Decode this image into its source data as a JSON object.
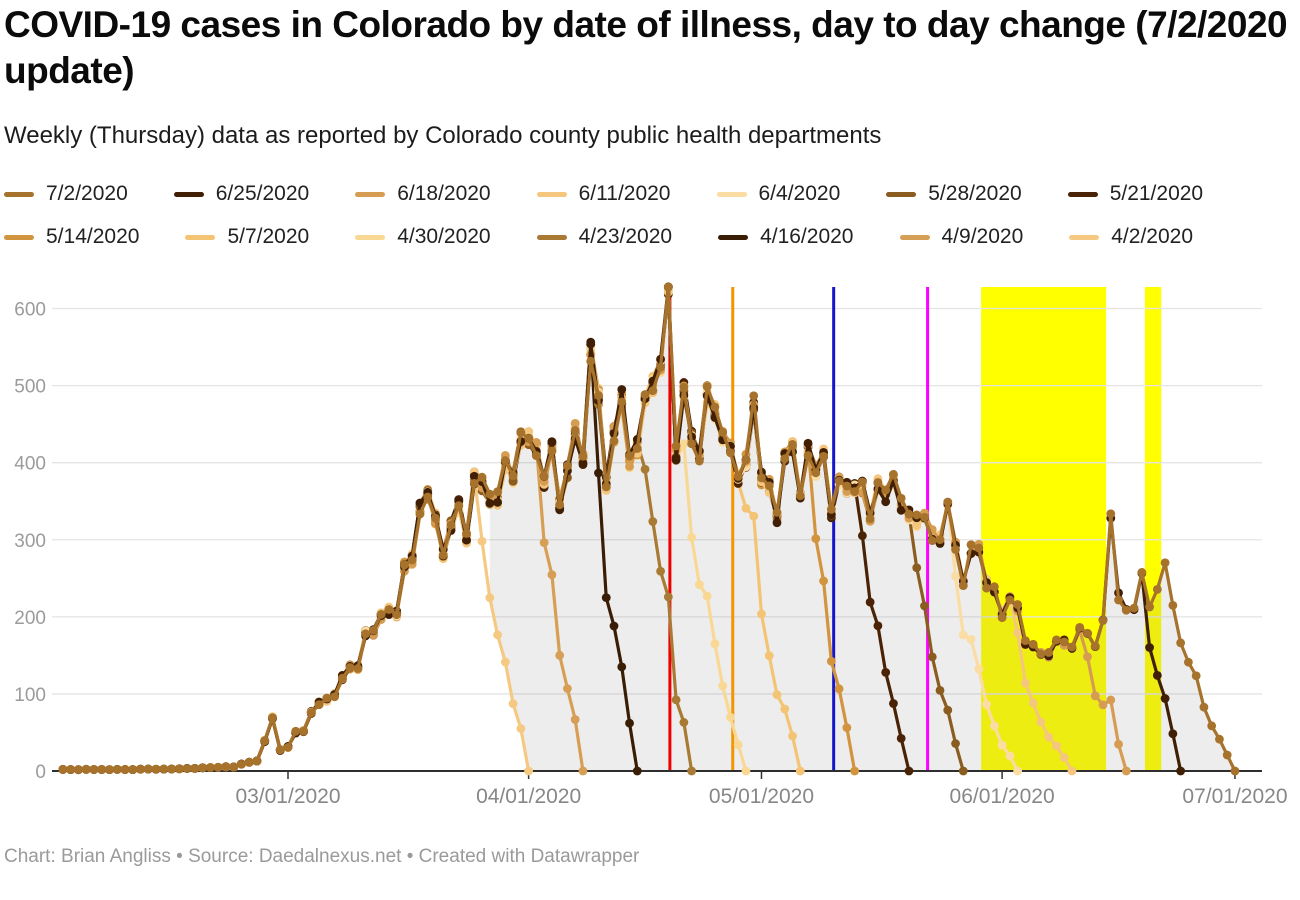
{
  "header": {
    "title": "COVID-19 cases in Colorado by date of illness, day to day change (7/2/2020 update)",
    "subtitle": "Weekly (Thursday) data as reported by Colorado county public health departments"
  },
  "footer": {
    "credit": "Chart: Brian Angliss • Source: Daedalnexus.net • Created with Datawrapper"
  },
  "chart_data": {
    "type": "line",
    "title": "COVID-19 cases in Colorado by date of illness, day to day change (7/2/2020 update)",
    "xlabel": "",
    "ylabel": "",
    "grid": true,
    "legend_position": "top",
    "x_axis": {
      "start_date": "2/1/2020",
      "tick_labels": [
        "03/01/2020",
        "04/01/2020",
        "05/01/2020",
        "06/01/2020",
        "07/01/2020"
      ],
      "tick_days": [
        29,
        60,
        90,
        121,
        151
      ]
    },
    "y_axis": {
      "ticks": [
        0,
        100,
        200,
        300,
        400,
        500,
        600
      ],
      "ylim": [
        0,
        628
      ]
    },
    "envelope_points_day_value": [
      [
        0,
        2
      ],
      [
        8,
        2
      ],
      [
        16,
        3
      ],
      [
        22,
        6
      ],
      [
        25,
        14
      ],
      [
        27,
        68
      ],
      [
        28,
        30
      ],
      [
        30,
        48
      ],
      [
        33,
        82
      ],
      [
        36,
        122
      ],
      [
        39,
        162
      ],
      [
        42,
        222
      ],
      [
        45,
        292
      ],
      [
        48,
        332
      ],
      [
        51,
        306
      ],
      [
        54,
        352
      ],
      [
        57,
        402
      ],
      [
        59,
        416
      ],
      [
        61,
        392
      ],
      [
        63,
        436
      ],
      [
        65,
        422
      ],
      [
        67,
        462
      ],
      [
        68,
        506
      ],
      [
        70,
        432
      ],
      [
        72,
        466
      ],
      [
        74,
        416
      ],
      [
        76,
        472
      ],
      [
        78,
        628
      ],
      [
        79,
        422
      ],
      [
        80,
        452
      ],
      [
        82,
        422
      ],
      [
        84,
        446
      ],
      [
        86,
        422
      ],
      [
        88,
        436
      ],
      [
        90,
        422
      ],
      [
        92,
        416
      ],
      [
        94,
        422
      ],
      [
        96,
        392
      ],
      [
        98,
        406
      ],
      [
        100,
        372
      ],
      [
        102,
        392
      ],
      [
        104,
        356
      ],
      [
        106,
        372
      ],
      [
        108,
        316
      ],
      [
        110,
        332
      ],
      [
        112,
        292
      ],
      [
        114,
        306
      ],
      [
        116,
        266
      ],
      [
        118,
        282
      ],
      [
        120,
        236
      ],
      [
        122,
        200
      ],
      [
        124,
        182
      ],
      [
        126,
        168
      ],
      [
        128,
        162
      ],
      [
        130,
        172
      ],
      [
        132,
        166
      ],
      [
        134,
        192
      ],
      [
        135,
        322
      ],
      [
        136,
        252
      ],
      [
        137,
        224
      ],
      [
        138,
        236
      ],
      [
        140,
        228
      ],
      [
        142,
        242
      ],
      [
        144,
        224
      ],
      [
        146,
        238
      ],
      [
        148,
        232
      ],
      [
        150,
        228
      ],
      [
        152,
        232
      ]
    ],
    "series": [
      {
        "label": "7/2/2020",
        "color": "#a6722c",
        "report_day": 152,
        "lag_days": 10
      },
      {
        "label": "6/25/2020",
        "color": "#401f05",
        "report_day": 145,
        "lag_days": 6
      },
      {
        "label": "6/18/2020",
        "color": "#d69c52",
        "report_day": 138,
        "lag_days": 7
      },
      {
        "label": "6/11/2020",
        "color": "#f5c67e",
        "report_day": 131,
        "lag_days": 9
      },
      {
        "label": "6/4/2020",
        "color": "#fbdca2",
        "report_day": 124,
        "lag_days": 10
      },
      {
        "label": "5/28/2020",
        "color": "#8a5c20",
        "report_day": 117,
        "lag_days": 8
      },
      {
        "label": "5/21/2020",
        "color": "#4a2306",
        "report_day": 110,
        "lag_days": 8
      },
      {
        "label": "5/14/2020",
        "color": "#d2943e",
        "report_day": 103,
        "lag_days": 7
      },
      {
        "label": "5/7/2020",
        "color": "#f3c474",
        "report_day": 96,
        "lag_days": 9
      },
      {
        "label": "4/30/2020",
        "color": "#f9d894",
        "report_day": 89,
        "lag_days": 10
      },
      {
        "label": "4/23/2020",
        "color": "#a87a33",
        "report_day": 82,
        "lag_days": 8
      },
      {
        "label": "4/16/2020",
        "color": "#3a1d05",
        "report_day": 75,
        "lag_days": 7
      },
      {
        "label": "4/9/2020",
        "color": "#d79e55",
        "report_day": 68,
        "lag_days": 7
      },
      {
        "label": "4/2/2020",
        "color": "#f6c983",
        "report_day": 61,
        "lag_days": 8
      }
    ],
    "annotations": {
      "vlines": [
        {
          "date": "4/19/2020",
          "day": 78.2,
          "color": "#ee0000"
        },
        {
          "date": "4/27/2020",
          "day": 86.3,
          "color": "#f29500"
        },
        {
          "date": "5/10/2020",
          "day": 99.3,
          "color": "#1515cc"
        },
        {
          "date": "5/22/2020",
          "day": 111.4,
          "color": "#ff00ff"
        }
      ],
      "bands": [
        {
          "start_date": "5/29/2020",
          "end_date": "6/14/2020",
          "start_day": 118.3,
          "end_day": 134.4,
          "color": "#ffff00"
        },
        {
          "start_date": "6/19/2020",
          "end_date": "6/21/2020",
          "start_day": 139.4,
          "end_day": 141.5,
          "color": "#ffff00"
        }
      ]
    },
    "styling": {
      "grid_color": "#e4e4e4",
      "axis_color": "#2e2e2e",
      "y_label_color": "#9b9b9b",
      "x_label_color": "#878787",
      "diff_fill": "rgba(125,125,125,0.14)"
    }
  }
}
